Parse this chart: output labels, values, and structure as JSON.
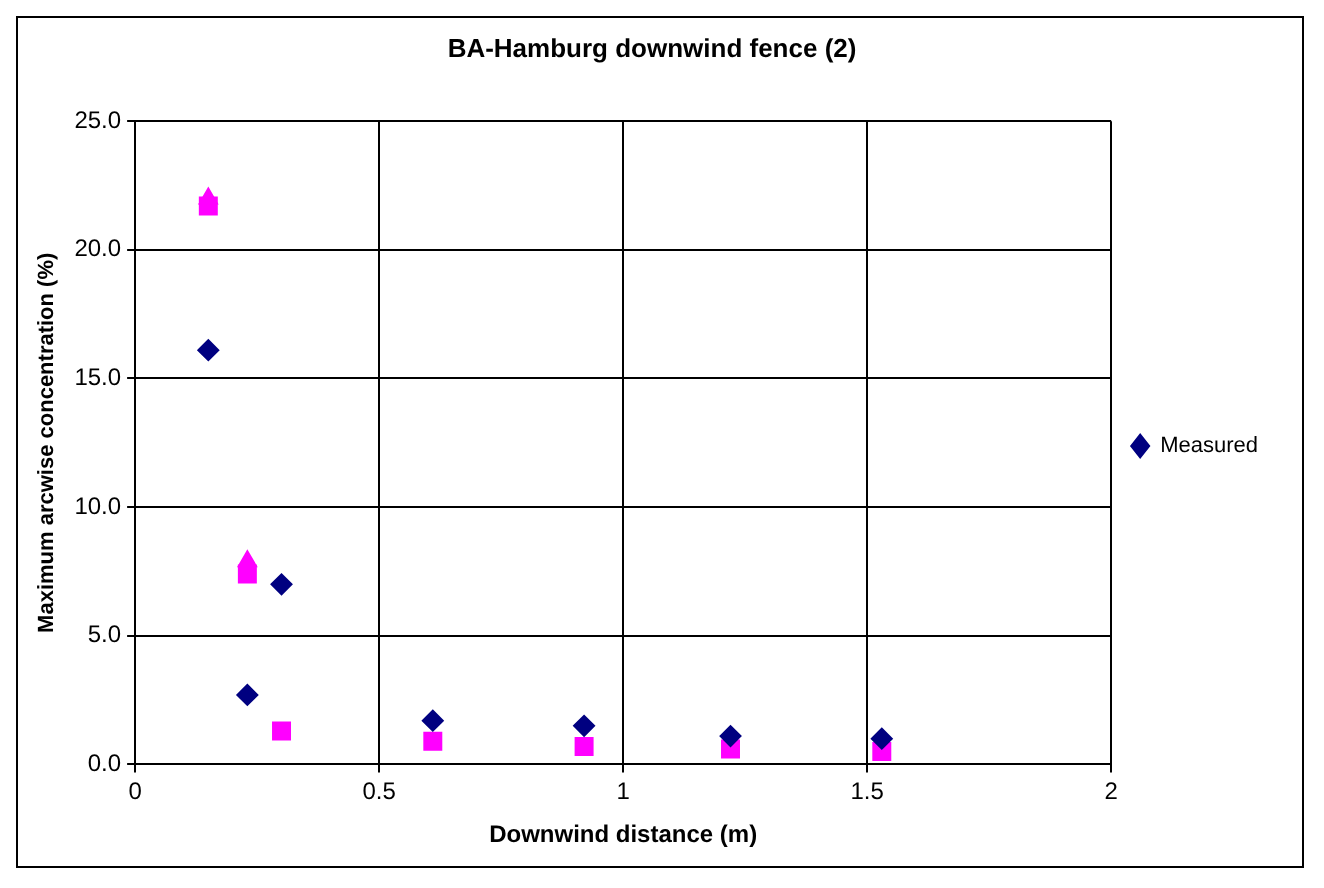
{
  "chart_data": {
    "type": "scatter",
    "title": "BA-Hamburg downwind fence (2)",
    "xlabel": "Downwind distance (m)",
    "ylabel": "Maximum arcwise concentration (%)",
    "x": [
      0.15,
      0.23,
      0.3,
      0.61,
      0.92,
      1.22,
      1.53
    ],
    "series": [
      {
        "name": "Measured",
        "color": "#000080",
        "marker": "diamond",
        "values": [
          16.1,
          2.7,
          7.0,
          1.7,
          1.5,
          1.1,
          1.0
        ]
      },
      {
        "color": "#ff00ff",
        "marker": "triangle",
        "values": [
          22.0,
          7.9,
          null,
          null,
          null,
          null,
          null
        ]
      },
      {
        "color": "#ff00ff",
        "marker": "square",
        "values": [
          21.7,
          7.4,
          1.3,
          0.9,
          0.7,
          0.6,
          0.5
        ]
      }
    ],
    "xlim": [
      0,
      2
    ],
    "xticks": [
      0,
      {
        "value": 0.5,
        "label": "0.5"
      },
      1,
      {
        "value": 1.5,
        "label": "1.5"
      },
      2
    ],
    "ylim": [
      0,
      25
    ],
    "yticks": [
      {
        "value": 0,
        "label": "0.0"
      },
      {
        "value": 5,
        "label": "5.0"
      },
      {
        "value": 10,
        "label": "10.0"
      },
      {
        "value": 15,
        "label": "15.0"
      },
      {
        "value": 20,
        "label": "20.0"
      },
      {
        "value": 25,
        "label": "25.0"
      }
    ],
    "grid": true,
    "legend": "right"
  }
}
